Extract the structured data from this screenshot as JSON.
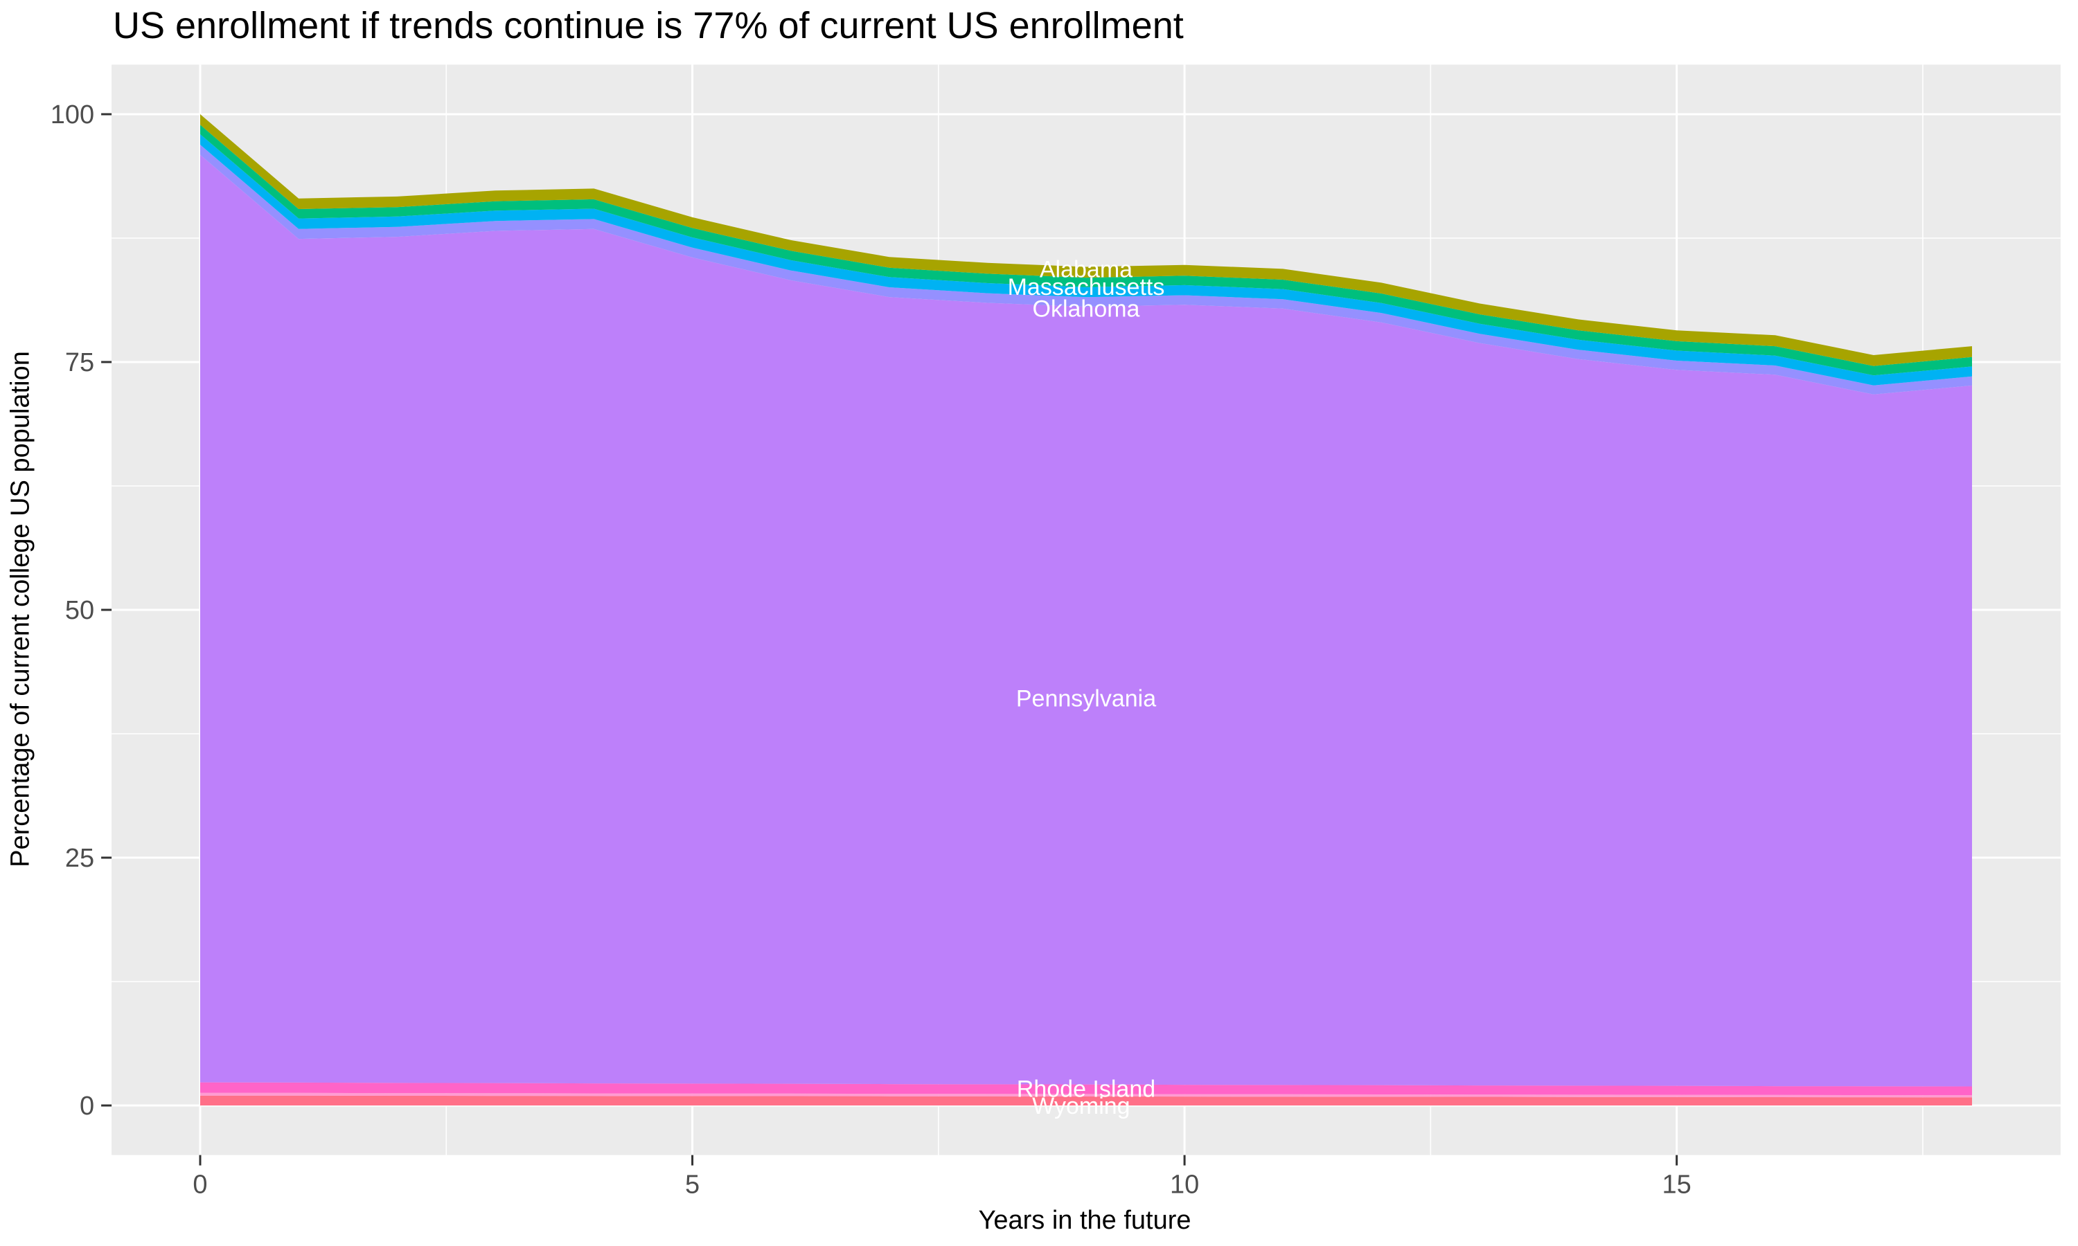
{
  "title": "US enrollment if trends continue is 77% of current US enrollment",
  "chart_data": {
    "type": "area",
    "stacked": true,
    "title": "US enrollment if trends continue is 77% of current US enrollment",
    "xlabel": "Years in the future",
    "ylabel": "Percentage of current college US population",
    "x": [
      0,
      1,
      2,
      3,
      4,
      5,
      6,
      7,
      8,
      9,
      10,
      11,
      12,
      13,
      14,
      15,
      16,
      17,
      18
    ],
    "x_ticks": [
      0,
      5,
      10,
      15
    ],
    "x_minor_ticks": [
      2.5,
      7.5,
      12.5,
      17.5
    ],
    "y_ticks": [
      0,
      25,
      50,
      75,
      100
    ],
    "y_minor_ticks": [
      12.5,
      37.5,
      62.5,
      87.5
    ],
    "xlim": [
      -0.9,
      18.9
    ],
    "ylim": [
      -5,
      105
    ],
    "grid": true,
    "legend_position": "none",
    "panel_bg": "#EBEBEB",
    "grid_color": "#FFFFFF",
    "tick_color": "#333333",
    "tick_label_color": "#4D4D4D",
    "area_label_color": "#FFFFFF",
    "final_total_percent": 77,
    "series": [
      {
        "name": "Wyoming",
        "color": "#FF7088",
        "values": [
          1.0,
          0.99,
          0.98,
          0.97,
          0.96,
          0.95,
          0.94,
          0.93,
          0.92,
          0.91,
          0.9,
          0.89,
          0.88,
          0.87,
          0.86,
          0.85,
          0.84,
          0.83,
          0.82
        ]
      },
      {
        "name": "",
        "color": "#FF9BD2",
        "values": [
          0.28,
          0.28,
          0.27,
          0.27,
          0.26,
          0.26,
          0.26,
          0.25,
          0.25,
          0.25,
          0.24,
          0.24,
          0.24,
          0.23,
          0.23,
          0.23,
          0.22,
          0.22,
          0.22
        ]
      },
      {
        "name": "Rhode Island",
        "color": "#FF64C8",
        "values": [
          1.05,
          1.04,
          1.03,
          1.02,
          1.01,
          1.0,
          0.99,
          0.98,
          0.97,
          0.96,
          0.95,
          0.94,
          0.93,
          0.92,
          0.91,
          0.9,
          0.89,
          0.89,
          0.88
        ]
      },
      {
        "name": "Pennsylvania",
        "color": "#BD80FA",
        "values": [
          93.58,
          85.11,
          85.35,
          85.97,
          86.2,
          83.34,
          81.06,
          79.4,
          78.83,
          78.46,
          78.69,
          78.32,
          76.95,
          74.89,
          73.3,
          72.23,
          71.77,
          69.79,
          70.71
        ]
      },
      {
        "name": "",
        "color": "#9590FF",
        "values": [
          1.02,
          1.01,
          1.01,
          1.0,
          1.0,
          0.99,
          0.99,
          0.98,
          0.97,
          0.96,
          0.96,
          0.95,
          0.95,
          0.94,
          0.94,
          0.93,
          0.93,
          0.92,
          0.92
        ]
      },
      {
        "name": "Oklahoma",
        "color": "#00B2F3",
        "values": [
          1.05,
          1.05,
          1.04,
          1.04,
          1.04,
          1.03,
          1.03,
          1.03,
          1.02,
          1.02,
          1.02,
          1.02,
          1.01,
          1.01,
          1.01,
          1.01,
          1.0,
          1.0,
          1.0
        ]
      },
      {
        "name": "Massachusetts",
        "color": "#00BF7D",
        "values": [
          0.95,
          0.95,
          0.95,
          0.95,
          0.95,
          0.95,
          0.95,
          0.95,
          0.95,
          0.95,
          0.95,
          0.95,
          0.95,
          0.95,
          0.95,
          0.95,
          0.95,
          0.95,
          0.95
        ]
      },
      {
        "name": "Alabama",
        "color": "#A7A400",
        "values": [
          1.07,
          1.07,
          1.07,
          1.08,
          1.08,
          1.08,
          1.08,
          1.08,
          1.09,
          1.09,
          1.09,
          1.09,
          1.09,
          1.09,
          1.1,
          1.1,
          1.1,
          1.1,
          1.1
        ]
      }
    ],
    "totals": [
      100,
      91.5,
      91.7,
      92.3,
      92.5,
      89.6,
      87.3,
      85.6,
      85.0,
      84.6,
      84.8,
      84.4,
      83.0,
      80.9,
      79.3,
      78.2,
      77.7,
      75.7,
      76.6
    ],
    "area_labels": [
      {
        "text": "Alabama",
        "year": 9,
        "value": 84.4
      },
      {
        "text": "Massachusetts",
        "year": 9,
        "value": 82.6
      },
      {
        "text": "Oklahoma",
        "year": 9,
        "value": 80.4
      },
      {
        "text": "Pennsylvania",
        "year": 9,
        "value": 41.1
      },
      {
        "text": "Rhode Island",
        "year": 9,
        "value": 1.7
      },
      {
        "text": "Wyoming",
        "year": 8.95,
        "value": 0.0
      }
    ]
  }
}
